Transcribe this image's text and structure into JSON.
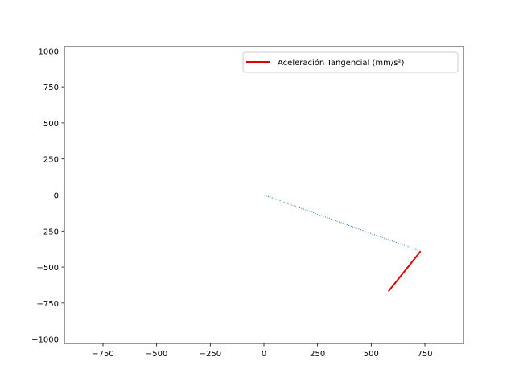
{
  "chart_data": {
    "type": "line",
    "title": "",
    "xlabel": "",
    "ylabel": "",
    "xlim": [
      -930,
      930
    ],
    "ylim": [
      -1030,
      1030
    ],
    "x_ticks": [
      -750,
      -500,
      -250,
      0,
      250,
      500,
      750
    ],
    "y_ticks": [
      1000,
      750,
      500,
      250,
      0,
      -250,
      -500,
      -750,
      -1000
    ],
    "x_tick_labels": [
      "−750",
      "−500",
      "−250",
      "0",
      "250",
      "500",
      "750"
    ],
    "y_tick_labels": [
      "1000",
      "750",
      "500",
      "250",
      "0",
      "−250",
      "−500",
      "−750",
      "−1000"
    ],
    "grid": false,
    "legend_position": "top-right",
    "series": [
      {
        "name": "",
        "style": "dotted",
        "color": "#1f77b4",
        "x": [
          0,
          730
        ],
        "y": [
          0,
          -390
        ]
      },
      {
        "name": "Aceleración Tangencial (mm/s²)",
        "style": "solid",
        "color": "#e00000",
        "x": [
          730,
          580
        ],
        "y": [
          -390,
          -670
        ]
      }
    ]
  }
}
